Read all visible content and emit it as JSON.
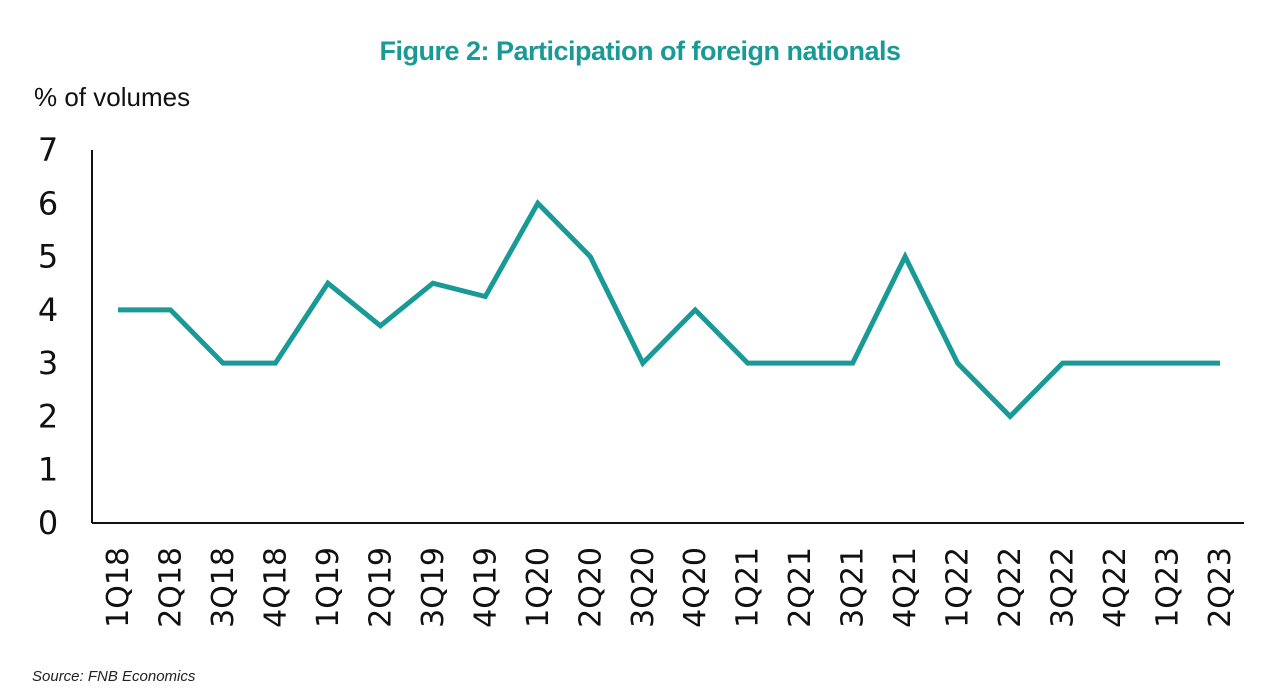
{
  "title": "Figure 2: Participation of foreign nationals",
  "source": "Source: FNB Economics",
  "chart_data": {
    "type": "line",
    "title": "Figure 2: Participation of foreign nationals",
    "ylabel": "% of volumes",
    "xlabel": "",
    "ylim": [
      0,
      7
    ],
    "yticks": [
      "0",
      "1",
      "2",
      "3",
      "4",
      "5",
      "6",
      "7"
    ],
    "grid": false,
    "legend": "none",
    "line_color": "#1a9a96",
    "categories": [
      "1Q18",
      "2Q18",
      "3Q18",
      "4Q18",
      "1Q19",
      "2Q19",
      "3Q19",
      "4Q19",
      "1Q20",
      "2Q20",
      "3Q20",
      "4Q20",
      "1Q21",
      "2Q21",
      "3Q21",
      "4Q21",
      "1Q22",
      "2Q22",
      "3Q22",
      "4Q22",
      "1Q23",
      "2Q23"
    ],
    "series": [
      {
        "values": [
          4,
          4,
          3,
          3,
          4.5,
          3.7,
          4.5,
          4.25,
          6,
          5,
          3,
          4,
          3,
          3,
          3,
          5,
          3,
          2,
          3,
          3,
          3,
          3
        ]
      }
    ]
  }
}
